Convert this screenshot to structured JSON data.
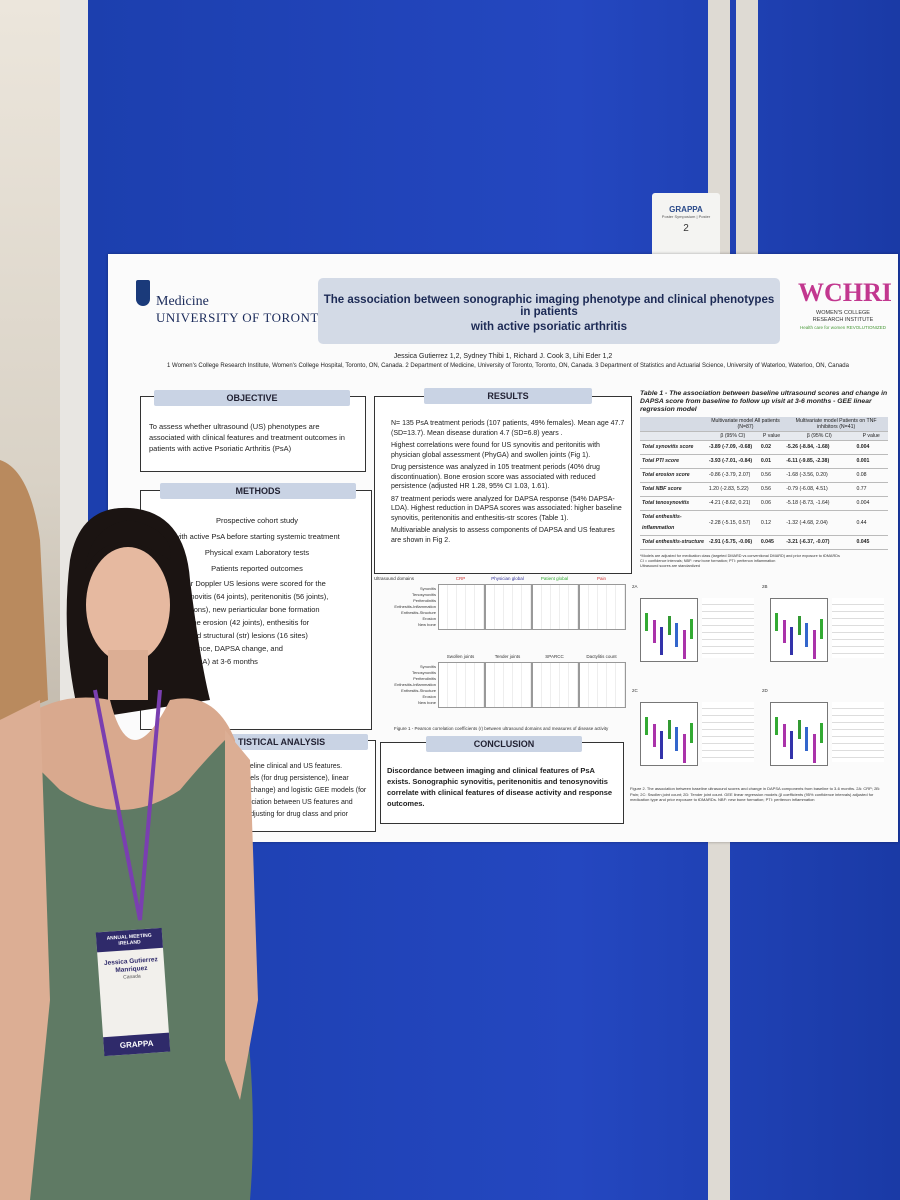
{
  "sign": {
    "brand": "GRAPPA",
    "subtitle": "Poster Symposium | Poster",
    "number": "2"
  },
  "poster": {
    "logo_left": [
      "Medicine",
      "UNIVERSITY OF TORONTO"
    ],
    "logo_right": [
      "WCHRI",
      "WOMEN'S COLLEGE",
      "RESEARCH INSTITUTE",
      "Health care for women REVOLUTIONIZED"
    ],
    "title": [
      "The association between sonographic imaging phenotype and clinical phenotypes in patients",
      "with active psoriatic arthritis"
    ],
    "authors": "Jessica Gutierrez 1,2, Sydney Thibi 1, Richard J. Cook 3, Lihi Eder 1,2",
    "affiliations": "1 Women's College Research Institute, Women's College Hospital, Toronto, ON, Canada. 2 Department of Medicine, University of Toronto, Toronto, ON, Canada. 3 Department of Statistics and Actuarial Science, University of Waterloo, Waterloo, ON, Canada",
    "objective": {
      "heading": "OBJECTIVE",
      "text": "To assess whether ultrasound (US) phenotypes are associated with clinical features and treatment outcomes in patients with active Psoriatic Arthritis (PsA)"
    },
    "methods": {
      "heading": "METHODS",
      "lines": [
        "Prospective cohort study",
        "with active PsA before starting systemic treatment",
        "Physical exam    Laboratory tests",
        "Patients reported outcomes",
        "de and Power Doppler US lesions were scored for the",
        "g lesions : synovitis (64 joints), peritenonitis (56 joints),",
        "ovitis (14 tendons), new periarticular bone formation",
        "(42 joints), bone erosion (42 joints), enthesitis for",
        "atory (inflm) and structural (str) lesions (16 sites)",
        "s: drug persistence, DAPSA change, and",
        "ease activity (LDA) at 3-6 months"
      ]
    },
    "stats": {
      "heading": "TISTICAL ANALYSIS",
      "lines": [
        "een baseline clinical and US features.",
        "rds models (for drug persistence), linear",
        "DAPSA change) and logistic GEE models (for",
        "the association between US features and",
        "s after adjusting for drug class and prior"
      ]
    },
    "results": {
      "heading": "RESULTS",
      "items": [
        "N= 135 PsA treatment periods (107 patients, 49% females). Mean age 47.7 (SD=13.7). Mean disease duration 4.7 (SD=6.8) years .",
        "Highest correlations were found for US synovitis and peritonitis with physician global assessment (PhyGA) and swollen joints (Fig 1).",
        "Drug persistence was analyzed in 105 treatment periods (40% drug discontinuation). Bone erosion score was associated with reduced persistence (adjusted HR 1.28, 95% CI 1.03, 1.61).",
        "87 treatment periods were analyzed for DAPSA response (54% DAPSA-LDA). Highest reduction in DAPSA scores was associated: higher baseline synovitis, peritenonitis and enthesitis-str scores (Table 1).",
        "Multivariable analysis to assess components of DAPSA and US features are shown in Fig 2."
      ]
    },
    "figure1": {
      "domain_label": "Ultrasound domains",
      "panels": [
        "CRP",
        "Physician global",
        "Patient global",
        "Pain",
        "Swollen joints",
        "Tender joints",
        "SPARCC",
        "Dactylitis count"
      ],
      "rows": [
        "Synovitis",
        "Tenosynovitis",
        "Peritendinitis",
        "Enthesitis-Inflammation",
        "Enthesitis-Structure",
        "Erosion",
        "New bone"
      ],
      "caption": "Figure 1 - Pearson correlation coefficients (r) between ultrasound domains and measures of disease activity"
    },
    "conclusion": {
      "heading": "CONCLUSION",
      "text": "Discordance between imaging and clinical features of PsA exists. Sonographic synovitis, peritenonitis and tenosynovitis correlate with clinical features of disease activity and response outcomes."
    },
    "table": {
      "caption": "Table 1 - The association between baseline ultrasound scores and change in DAPSA score from baseline to follow up visit at 3-6 months - GEE linear regression model",
      "groups": [
        "Multivariate model All patients (N=87)",
        "Multivariate model Patients on TNF inhibitors (N=41)"
      ],
      "subheaders": [
        "β (95% CI)",
        "P value",
        "β (95% CI)",
        "P value"
      ],
      "rows": [
        [
          "Total synovitis score",
          "-3.89 (-7.09, -0.68)",
          "0.02",
          "-5.26 (-8.84, -1.68)",
          "0.004"
        ],
        [
          "Total PTI score",
          "-3.93 (-7.01, -0.84)",
          "0.01",
          "-6.11 (-9.85, -2.38)",
          "0.001"
        ],
        [
          "Total erosion score",
          "-0.86 (-3.79, 2.07)",
          "0.56",
          "-1.68 (-3.56, 0.20)",
          "0.08"
        ],
        [
          "Total NBF score",
          "1.20 (-2.83, 5.22)",
          "0.56",
          "-0.79 (-6.08, 4.51)",
          "0.77"
        ],
        [
          "Total tenosynovitis",
          "-4.21 (-8.62, 0.21)",
          "0.06",
          "-5.18 (-8.73, -1.64)",
          "0.004"
        ],
        [
          "Total enthesitis-inflammation",
          "-2.28 (-5.15, 0.57)",
          "0.12",
          "-1.32 (-4.68, 2.04)",
          "0.44"
        ],
        [
          "Total enthesitis-structure",
          "-2.91 (-5.75, -0.06)",
          "0.045",
          "-3.21 (-6.37, -0.07)",
          "0.045"
        ]
      ],
      "notes": [
        "*Models are adjusted for medication class (targeted DMARD vs conventional DMARD) and prior exposure to tDMARDs",
        "CI = confidence intervals; NBF: new bone formation; PTI: peritenon inflammation",
        "Ultrasound scores are standardized"
      ]
    },
    "figure2": {
      "panels": [
        "2A",
        "2B",
        "2C",
        "2D"
      ],
      "caption": "Figure 2. The association between baseline ultrasound scores and change in DAPSA components from baseline to 3-6 months. 2A: CRP; 2B: Pain; 2C: Swollen joint count; 2D: Tender joint count. GEE linear regression models (β coefficients (95% confidence intervals) adjusted for medication type and prior exposure to tDMARDs. NBF: new bone formation; PTI: peritenon inflammation"
    }
  },
  "badge": {
    "event": "ANNUAL MEETING IRELAND",
    "name": "Jessica Gutierrez Manriquez",
    "role": "Canada",
    "brand": "GRAPPA"
  }
}
